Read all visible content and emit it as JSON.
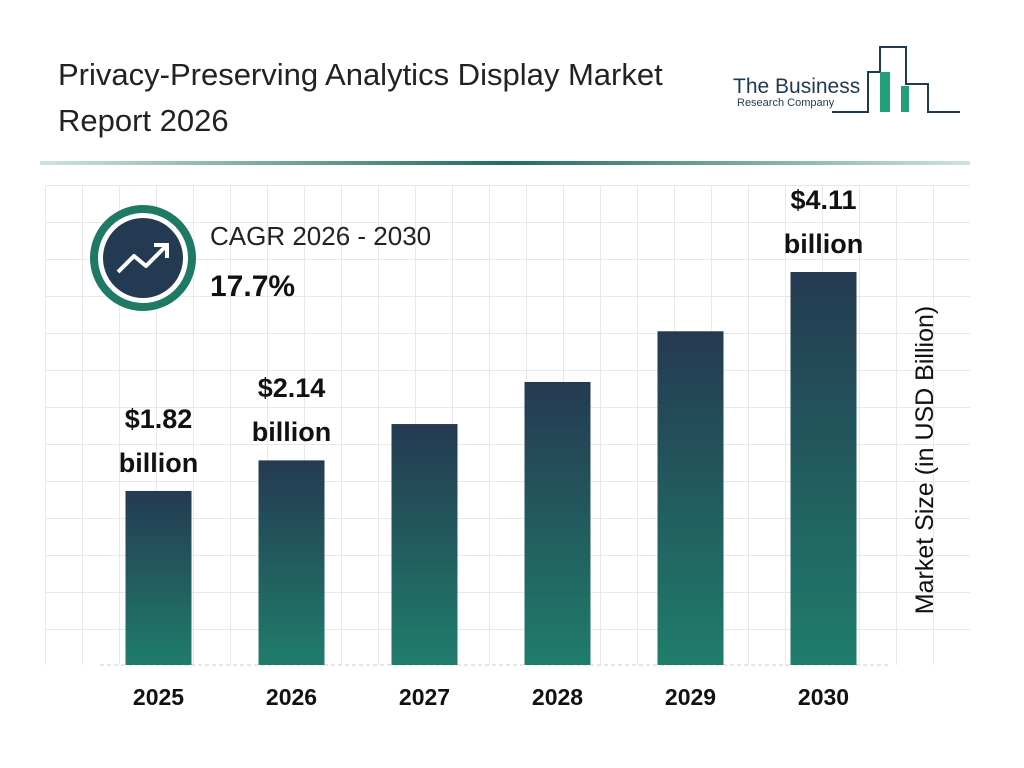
{
  "chart_data": {
    "type": "bar",
    "title": "Privacy-Preserving Analytics Display Market Report 2026",
    "categories": [
      "2025",
      "2026",
      "2027",
      "2028",
      "2029",
      "2030"
    ],
    "values": [
      1.82,
      2.14,
      2.52,
      2.96,
      3.49,
      4.11
    ],
    "value_labels": [
      "$1.82 billion",
      "$2.14 billion",
      null,
      null,
      null,
      "$4.11 billion"
    ],
    "y_axis_label": "Market Size (in USD Billion)",
    "cagr_label": "CAGR 2026 - 2030",
    "cagr_value": "17.7%",
    "logo_line1": "The Business",
    "logo_line2": "Research Company",
    "grid": true
  }
}
